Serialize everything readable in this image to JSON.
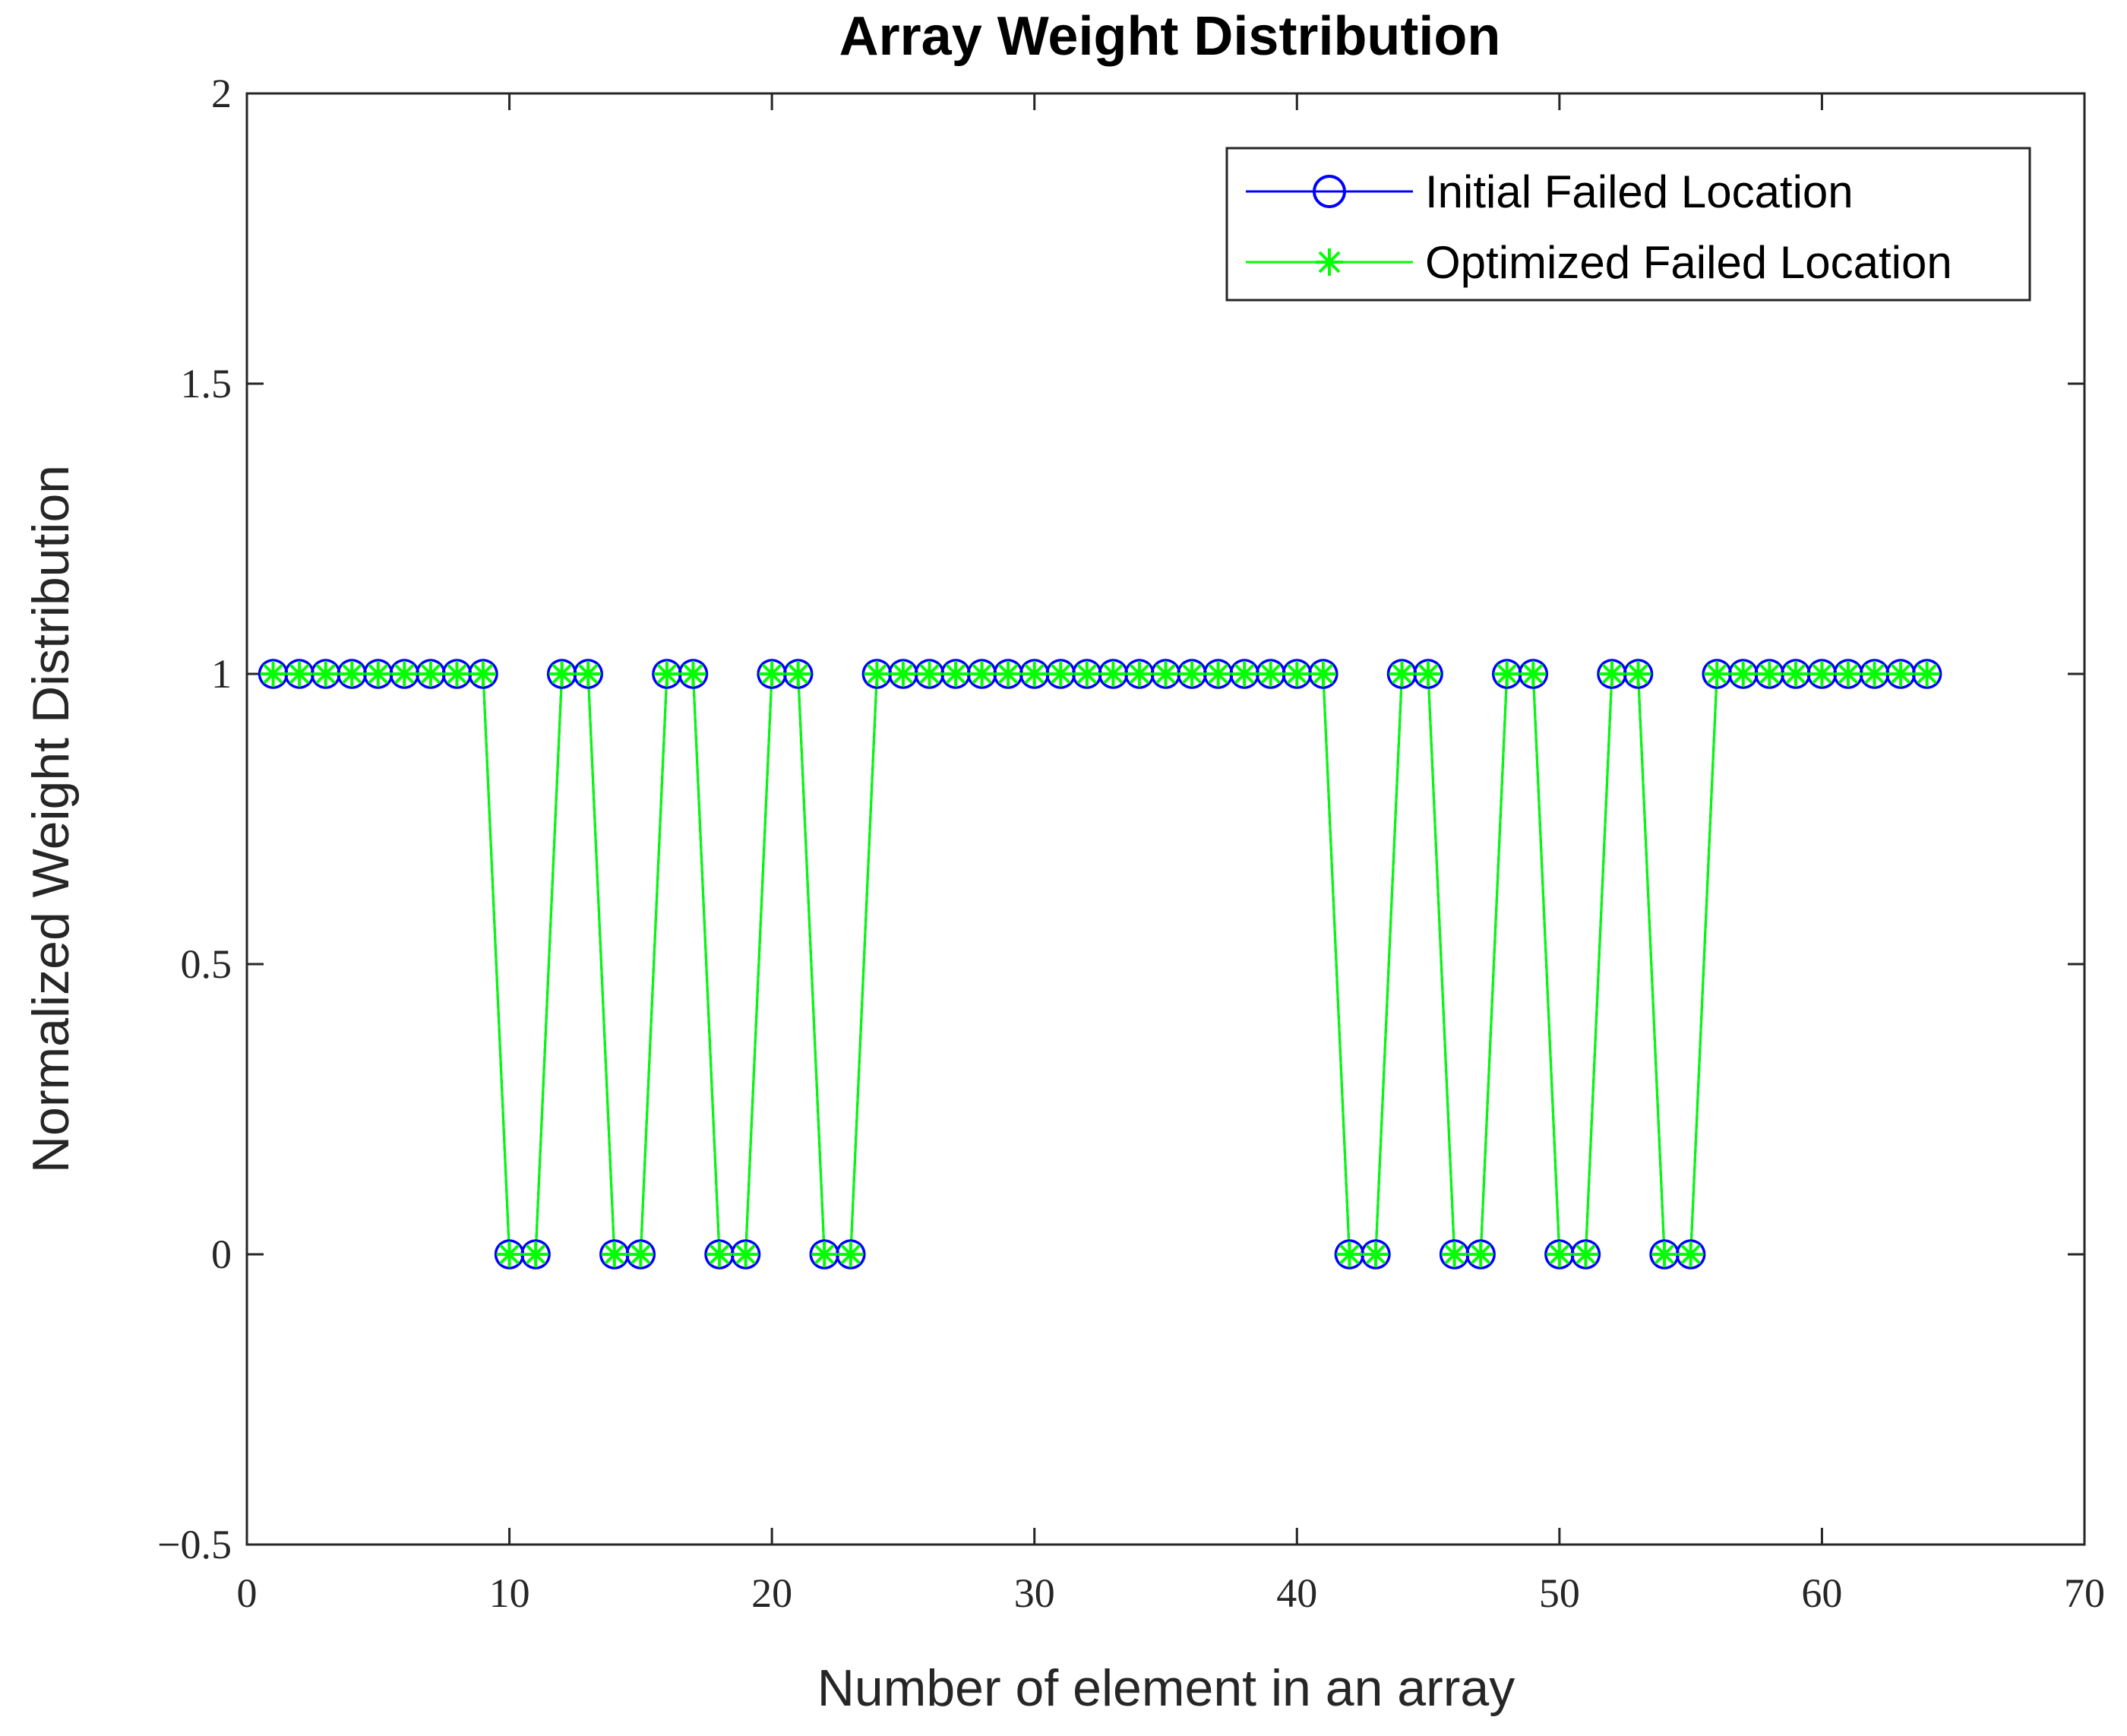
{
  "chart_data": {
    "type": "line",
    "title": "Array Weight Distribution",
    "xlabel": "Number of element in an array",
    "ylabel": "Normalized Weight Distribution",
    "xlim": [
      0,
      70
    ],
    "ylim": [
      -0.5,
      2
    ],
    "xticks": [
      0,
      10,
      20,
      30,
      40,
      50,
      60,
      70
    ],
    "xtick_labels": [
      "0",
      "10",
      "20",
      "30",
      "40",
      "50",
      "60",
      "70"
    ],
    "yticks": [
      -0.5,
      0,
      0.5,
      1,
      1.5,
      2
    ],
    "ytick_labels": [
      "−0.5",
      "0",
      "0.5",
      "1",
      "1.5",
      "2"
    ],
    "grid": false,
    "legend_position": "top-right",
    "x": [
      1,
      2,
      3,
      4,
      5,
      6,
      7,
      8,
      9,
      10,
      11,
      12,
      13,
      14,
      15,
      16,
      17,
      18,
      19,
      20,
      21,
      22,
      23,
      24,
      25,
      26,
      27,
      28,
      29,
      30,
      31,
      32,
      33,
      34,
      35,
      36,
      37,
      38,
      39,
      40,
      41,
      42,
      43,
      44,
      45,
      46,
      47,
      48,
      49,
      50,
      51,
      52,
      53,
      54,
      55,
      56,
      57,
      58,
      59,
      60,
      61,
      62,
      63,
      64
    ],
    "series": [
      {
        "name": "Initial Failed Location",
        "color": "#0000ff",
        "marker": "circle",
        "values": [
          1,
          1,
          1,
          1,
          1,
          1,
          1,
          1,
          1,
          0,
          0,
          1,
          1,
          0,
          0,
          1,
          1,
          0,
          0,
          1,
          1,
          0,
          0,
          1,
          1,
          1,
          1,
          1,
          1,
          1,
          1,
          1,
          1,
          1,
          1,
          1,
          1,
          1,
          1,
          1,
          1,
          0,
          0,
          1,
          1,
          0,
          0,
          1,
          1,
          0,
          0,
          1,
          1,
          0,
          0,
          1,
          1,
          1,
          1,
          1,
          1,
          1,
          1,
          1
        ]
      },
      {
        "name": "Optimized Failed Location",
        "color": "#00ff00",
        "marker": "asterisk",
        "values": [
          1,
          1,
          1,
          1,
          1,
          1,
          1,
          1,
          1,
          0,
          0,
          1,
          1,
          0,
          0,
          1,
          1,
          0,
          0,
          1,
          1,
          0,
          0,
          1,
          1,
          1,
          1,
          1,
          1,
          1,
          1,
          1,
          1,
          1,
          1,
          1,
          1,
          1,
          1,
          1,
          1,
          0,
          0,
          1,
          1,
          0,
          0,
          1,
          1,
          0,
          0,
          1,
          1,
          0,
          0,
          1,
          1,
          1,
          1,
          1,
          1,
          1,
          1,
          1
        ]
      }
    ]
  }
}
